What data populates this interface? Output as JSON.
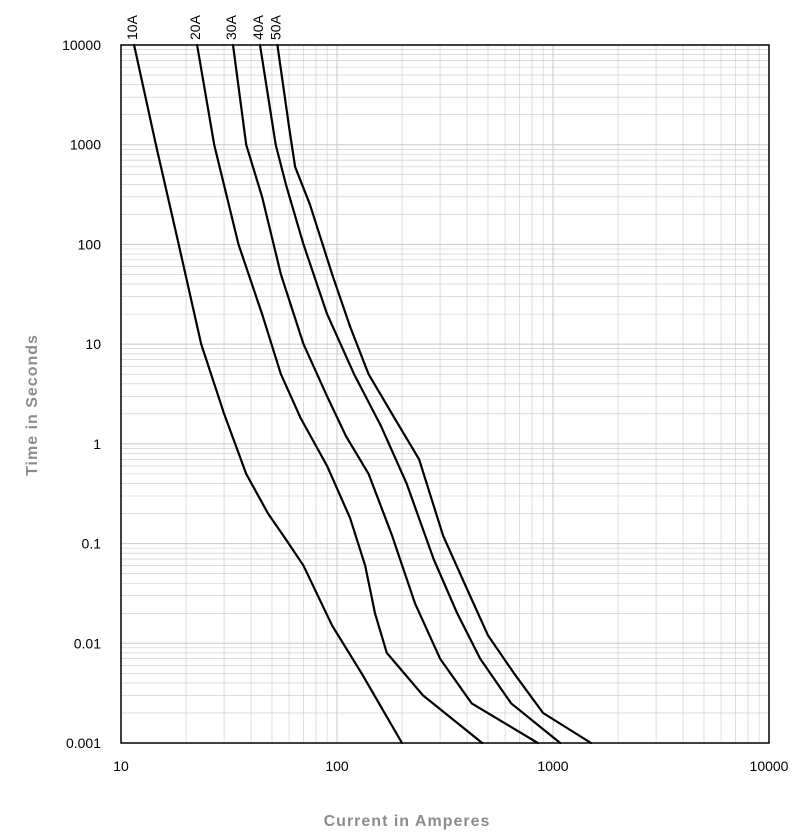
{
  "chart_data": {
    "type": "line",
    "xscale": "log",
    "yscale": "log",
    "xlim": [
      10,
      10000
    ],
    "ylim": [
      0.001,
      10000
    ],
    "xlabel": "Current in Amperes",
    "ylabel": "Time in Seconds",
    "x_ticks": [
      "10",
      "100",
      "1000",
      "10000"
    ],
    "y_ticks": [
      "0.001",
      "0.01",
      "0.1",
      "1",
      "10",
      "100",
      "1000",
      "10000"
    ],
    "grid": "on (major and minor)",
    "line_color": "#000000",
    "grid_color": "#c8c8c8",
    "series": [
      {
        "name": "10A",
        "points": [
          [
            11.5,
            10000
          ],
          [
            14.5,
            1000
          ],
          [
            18.5,
            100
          ],
          [
            23.5,
            10
          ],
          [
            30,
            2
          ],
          [
            38,
            0.5
          ],
          [
            48,
            0.2
          ],
          [
            58,
            0.11
          ],
          [
            70,
            0.06
          ],
          [
            95,
            0.015
          ],
          [
            130,
            0.005
          ],
          [
            200,
            0.001
          ]
        ]
      },
      {
        "name": "20A",
        "points": [
          [
            22.5,
            10000
          ],
          [
            27,
            1000
          ],
          [
            35,
            100
          ],
          [
            45,
            20
          ],
          [
            55,
            5
          ],
          [
            68,
            1.8
          ],
          [
            90,
            0.6
          ],
          [
            115,
            0.18
          ],
          [
            135,
            0.06
          ],
          [
            150,
            0.02
          ],
          [
            170,
            0.008
          ],
          [
            250,
            0.003
          ],
          [
            470,
            0.001
          ]
        ]
      },
      {
        "name": "30A",
        "points": [
          [
            33,
            10000
          ],
          [
            38,
            1000
          ],
          [
            45,
            300
          ],
          [
            55,
            50
          ],
          [
            70,
            10
          ],
          [
            90,
            3
          ],
          [
            110,
            1.2
          ],
          [
            140,
            0.5
          ],
          [
            180,
            0.12
          ],
          [
            230,
            0.025
          ],
          [
            300,
            0.007
          ],
          [
            420,
            0.0025
          ],
          [
            850,
            0.001
          ]
        ]
      },
      {
        "name": "40A",
        "points": [
          [
            44,
            10000
          ],
          [
            52,
            1000
          ],
          [
            58,
            400
          ],
          [
            70,
            100
          ],
          [
            90,
            20
          ],
          [
            120,
            5
          ],
          [
            160,
            1.5
          ],
          [
            210,
            0.4
          ],
          [
            280,
            0.07
          ],
          [
            360,
            0.02
          ],
          [
            460,
            0.007
          ],
          [
            640,
            0.0025
          ],
          [
            1080,
            0.001
          ]
        ]
      },
      {
        "name": "50A",
        "points": [
          [
            53,
            10000
          ],
          [
            60,
            1500
          ],
          [
            64,
            600
          ],
          [
            75,
            250
          ],
          [
            95,
            50
          ],
          [
            115,
            15
          ],
          [
            140,
            5
          ],
          [
            185,
            1.8
          ],
          [
            240,
            0.7
          ],
          [
            310,
            0.12
          ],
          [
            400,
            0.035
          ],
          [
            500,
            0.012
          ],
          [
            660,
            0.005
          ],
          [
            900,
            0.002
          ],
          [
            1500,
            0.001
          ]
        ]
      }
    ]
  }
}
